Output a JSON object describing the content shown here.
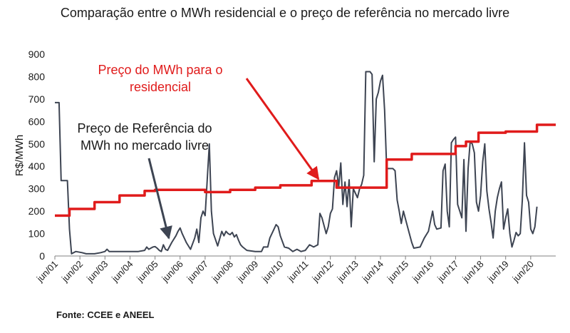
{
  "chart_data": {
    "type": "line",
    "title": "Comparação entre o MWh residencial e o preço de referência no mercado livre",
    "ylabel": "R$/MWh",
    "xlabel": "",
    "ylim": [
      0,
      900
    ],
    "xlim": [
      "2001-06",
      "2021-06"
    ],
    "yticks": [
      0,
      100,
      200,
      300,
      400,
      500,
      600,
      700,
      800,
      900
    ],
    "xticks": [
      {
        "x": "2001-06",
        "label": "jun/01"
      },
      {
        "x": "2002-06",
        "label": "jun/02"
      },
      {
        "x": "2003-06",
        "label": "jun/03"
      },
      {
        "x": "2004-06",
        "label": "jun/04"
      },
      {
        "x": "2005-06",
        "label": "jun/05"
      },
      {
        "x": "2006-06",
        "label": "jun/06"
      },
      {
        "x": "2007-06",
        "label": "jun/07"
      },
      {
        "x": "2008-06",
        "label": "jun/08"
      },
      {
        "x": "2009-06",
        "label": "jun/09"
      },
      {
        "x": "2010-06",
        "label": "jun/10"
      },
      {
        "x": "2011-06",
        "label": "jun/11"
      },
      {
        "x": "2012-06",
        "label": "jun/12"
      },
      {
        "x": "2013-06",
        "label": "jun/13"
      },
      {
        "x": "2014-06",
        "label": "jun/14"
      },
      {
        "x": "2015-06",
        "label": "jun/15"
      },
      {
        "x": "2016-06",
        "label": "jun/16"
      },
      {
        "x": "2017-06",
        "label": "jun/17"
      },
      {
        "x": "2018-06",
        "label": "jun/18"
      },
      {
        "x": "2019-06",
        "label": "jun/19"
      },
      {
        "x": "2020-06",
        "label": "jun/20"
      }
    ],
    "grid": false,
    "legend": "none",
    "series": [
      {
        "color": "#e01b1b",
        "step": true,
        "points": [
          [
            "2001-06",
            180
          ],
          [
            "2002-01",
            210
          ],
          [
            "2003-01",
            240
          ],
          [
            "2004-01",
            270
          ],
          [
            "2005-01",
            290
          ],
          [
            "2005-06",
            295
          ],
          [
            "2007-06",
            285
          ],
          [
            "2008-06",
            295
          ],
          [
            "2009-06",
            305
          ],
          [
            "2010-06",
            315
          ],
          [
            "2011-09",
            335
          ],
          [
            "2012-09",
            305
          ],
          [
            "2014-09",
            430
          ],
          [
            "2015-09",
            455
          ],
          [
            "2017-06",
            490
          ],
          [
            "2017-11",
            510
          ],
          [
            "2018-05",
            550
          ],
          [
            "2019-06",
            555
          ],
          [
            "2020-09",
            585
          ],
          [
            "2021-06",
            585
          ]
        ]
      },
      {
        "color": "#3d4452",
        "step": false,
        "points": [
          [
            "2001-06",
            684
          ],
          [
            "2001-08",
            684
          ],
          [
            "2001-09",
            336
          ],
          [
            "2001-12",
            336
          ],
          [
            "2002-01",
            120
          ],
          [
            "2002-02",
            10
          ],
          [
            "2002-04",
            20
          ],
          [
            "2002-07",
            15
          ],
          [
            "2002-09",
            10
          ],
          [
            "2003-01",
            10
          ],
          [
            "2003-04",
            15
          ],
          [
            "2003-06",
            20
          ],
          [
            "2003-07",
            30
          ],
          [
            "2003-08",
            20
          ],
          [
            "2003-10",
            20
          ],
          [
            "2004-01",
            20
          ],
          [
            "2004-04",
            20
          ],
          [
            "2004-07",
            20
          ],
          [
            "2004-10",
            20
          ],
          [
            "2005-01",
            25
          ],
          [
            "2005-02",
            40
          ],
          [
            "2005-03",
            30
          ],
          [
            "2005-04",
            35
          ],
          [
            "2005-05",
            40
          ],
          [
            "2005-06",
            42
          ],
          [
            "2005-07",
            35
          ],
          [
            "2005-08",
            25
          ],
          [
            "2005-09",
            20
          ],
          [
            "2005-10",
            50
          ],
          [
            "2005-11",
            30
          ],
          [
            "2005-12",
            25
          ],
          [
            "2006-02",
            60
          ],
          [
            "2006-04",
            90
          ],
          [
            "2006-05",
            110
          ],
          [
            "2006-06",
            125
          ],
          [
            "2006-07",
            100
          ],
          [
            "2006-09",
            60
          ],
          [
            "2006-11",
            30
          ],
          [
            "2007-01",
            80
          ],
          [
            "2007-02",
            120
          ],
          [
            "2007-03",
            60
          ],
          [
            "2007-04",
            170
          ],
          [
            "2007-05",
            200
          ],
          [
            "2007-06",
            180
          ],
          [
            "2007-08",
            500
          ],
          [
            "2007-09",
            200
          ],
          [
            "2007-10",
            100
          ],
          [
            "2007-12",
            45
          ],
          [
            "2008-02",
            110
          ],
          [
            "2008-03",
            90
          ],
          [
            "2008-04",
            110
          ],
          [
            "2008-05",
            100
          ],
          [
            "2008-06",
            95
          ],
          [
            "2008-07",
            105
          ],
          [
            "2008-08",
            85
          ],
          [
            "2008-09",
            95
          ],
          [
            "2008-10",
            70
          ],
          [
            "2008-11",
            50
          ],
          [
            "2008-12",
            40
          ],
          [
            "2009-02",
            25
          ],
          [
            "2009-06",
            20
          ],
          [
            "2009-09",
            20
          ],
          [
            "2009-10",
            40
          ],
          [
            "2009-12",
            40
          ],
          [
            "2010-01",
            80
          ],
          [
            "2010-03",
            120
          ],
          [
            "2010-04",
            140
          ],
          [
            "2010-05",
            130
          ],
          [
            "2010-06",
            90
          ],
          [
            "2010-08",
            40
          ],
          [
            "2010-10",
            35
          ],
          [
            "2010-12",
            20
          ],
          [
            "2011-02",
            30
          ],
          [
            "2011-04",
            20
          ],
          [
            "2011-06",
            25
          ],
          [
            "2011-08",
            50
          ],
          [
            "2011-10",
            40
          ],
          [
            "2011-12",
            50
          ],
          [
            "2012-01",
            190
          ],
          [
            "2012-02",
            170
          ],
          [
            "2012-04",
            100
          ],
          [
            "2012-05",
            130
          ],
          [
            "2012-06",
            190
          ],
          [
            "2012-07",
            210
          ],
          [
            "2012-08",
            350
          ],
          [
            "2012-09",
            380
          ],
          [
            "2012-10",
            310
          ],
          [
            "2012-11",
            415
          ],
          [
            "2012-12",
            230
          ],
          [
            "2013-01",
            330
          ],
          [
            "2013-02",
            220
          ],
          [
            "2013-03",
            340
          ],
          [
            "2013-04",
            130
          ],
          [
            "2013-05",
            300
          ],
          [
            "2013-07",
            260
          ],
          [
            "2013-08",
            300
          ],
          [
            "2013-09",
            320
          ],
          [
            "2013-10",
            360
          ],
          [
            "2013-11",
            822
          ],
          [
            "2014-01",
            822
          ],
          [
            "2014-02",
            810
          ],
          [
            "2014-03",
            420
          ],
          [
            "2014-04",
            700
          ],
          [
            "2014-05",
            730
          ],
          [
            "2014-06",
            780
          ],
          [
            "2014-07",
            806
          ],
          [
            "2014-08",
            650
          ],
          [
            "2014-09",
            390
          ],
          [
            "2014-12",
            390
          ],
          [
            "2015-01",
            380
          ],
          [
            "2015-02",
            250
          ],
          [
            "2015-03",
            200
          ],
          [
            "2015-04",
            145
          ],
          [
            "2015-05",
            200
          ],
          [
            "2015-07",
            130
          ],
          [
            "2015-09",
            60
          ],
          [
            "2015-10",
            35
          ],
          [
            "2016-01",
            40
          ],
          [
            "2016-03",
            80
          ],
          [
            "2016-05",
            110
          ],
          [
            "2016-07",
            200
          ],
          [
            "2016-08",
            140
          ],
          [
            "2016-09",
            120
          ],
          [
            "2016-11",
            125
          ],
          [
            "2016-12",
            380
          ],
          [
            "2017-01",
            410
          ],
          [
            "2017-02",
            200
          ],
          [
            "2017-03",
            130
          ],
          [
            "2017-04",
            505
          ],
          [
            "2017-05",
            520
          ],
          [
            "2017-06",
            530
          ],
          [
            "2017-07",
            230
          ],
          [
            "2017-08",
            200
          ],
          [
            "2017-09",
            170
          ],
          [
            "2017-10",
            430
          ],
          [
            "2017-11",
            110
          ],
          [
            "2017-12",
            390
          ],
          [
            "2018-01",
            510
          ],
          [
            "2018-02",
            500
          ],
          [
            "2018-03",
            460
          ],
          [
            "2018-04",
            240
          ],
          [
            "2018-05",
            200
          ],
          [
            "2018-06",
            270
          ],
          [
            "2018-07",
            420
          ],
          [
            "2018-08",
            500
          ],
          [
            "2018-09",
            290
          ],
          [
            "2018-10",
            210
          ],
          [
            "2018-11",
            150
          ],
          [
            "2018-12",
            80
          ],
          [
            "2019-01",
            200
          ],
          [
            "2019-02",
            260
          ],
          [
            "2019-03",
            300
          ],
          [
            "2019-04",
            330
          ],
          [
            "2019-05",
            120
          ],
          [
            "2019-06",
            170
          ],
          [
            "2019-07",
            210
          ],
          [
            "2019-08",
            100
          ],
          [
            "2019-09",
            40
          ],
          [
            "2019-10",
            70
          ],
          [
            "2019-11",
            105
          ],
          [
            "2019-12",
            90
          ],
          [
            "2020-01",
            100
          ],
          [
            "2020-02",
            250
          ],
          [
            "2020-03",
            505
          ],
          [
            "2020-04",
            270
          ],
          [
            "2020-05",
            240
          ],
          [
            "2020-06",
            120
          ],
          [
            "2020-07",
            100
          ],
          [
            "2020-08",
            130
          ],
          [
            "2020-09",
            220
          ]
        ]
      }
    ],
    "annotations": [
      {
        "id": "residencial",
        "color": "#e01b1b",
        "lines": [
          "Preço do MWh para o",
          "residencial"
        ]
      },
      {
        "id": "referencia",
        "color": "#1a1a1a",
        "lines": [
          "Preço de Referência do",
          "MWh no mercado livre"
        ]
      }
    ]
  },
  "footer": {
    "source": "Fonte: CCEE e ANEEL"
  }
}
